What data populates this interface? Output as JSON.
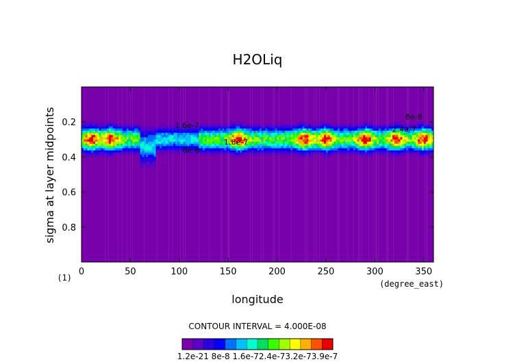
{
  "chart_data": {
    "type": "heatmap",
    "title": "H2OLiq",
    "xlabel": "longitude",
    "ylabel": "sigma at layer midpoints",
    "x_units": "(degree_east)",
    "corner_label": "(1)",
    "xlim": [
      0,
      360
    ],
    "ylim": [
      1.0,
      0.0
    ],
    "x_ticks": [
      0,
      50,
      100,
      150,
      200,
      250,
      300,
      350
    ],
    "y_ticks": [
      0.2,
      0.4,
      0.6,
      0.8
    ],
    "contour_interval_text": "CONTOUR INTERVAL = 4.000E-08",
    "colorbar_labels": [
      "1.2e-21",
      "8e-8",
      "1.6e-7",
      "2.4e-7",
      "3.2e-7",
      "3.9e-7"
    ],
    "colorbar_label_text": "1.2e-21 8e-8  1.6e-72.4e-73.2e-73.9e-7",
    "colors": [
      "#7a00b0",
      "#5a00c8",
      "#2a00e0",
      "#0000ff",
      "#0070ff",
      "#00c0ff",
      "#00ffd0",
      "#00e060",
      "#38ff00",
      "#a0ff00",
      "#ffff00",
      "#ffb000",
      "#ff5000",
      "#e80000"
    ],
    "background_color": "#7700aa",
    "band_profile": [
      {
        "sigma": 0.18,
        "value": 1e-08
      },
      {
        "sigma": 0.22,
        "value": 6e-08
      },
      {
        "sigma": 0.26,
        "value": 1.6e-07
      },
      {
        "sigma": 0.3,
        "value": 2.8e-07
      },
      {
        "sigma": 0.34,
        "value": 2.2e-07
      },
      {
        "sigma": 0.38,
        "value": 1e-07
      },
      {
        "sigma": 0.42,
        "value": 2e-08
      }
    ],
    "peak_longitudes": [
      10,
      30,
      160,
      228,
      250,
      290,
      322,
      350
    ],
    "dip_longitude": 68,
    "contour_labels": [
      {
        "text": "1.6e-7",
        "lon": 108,
        "sigma": 0.235
      },
      {
        "text": "8e-8",
        "lon": 112,
        "sigma": 0.375
      },
      {
        "text": "1.6e-7",
        "lon": 158,
        "sigma": 0.33
      },
      {
        "text": "2.4e-7",
        "lon": 330,
        "sigma": 0.255
      },
      {
        "text": "8e-8",
        "lon": 340,
        "sigma": 0.185
      }
    ]
  }
}
